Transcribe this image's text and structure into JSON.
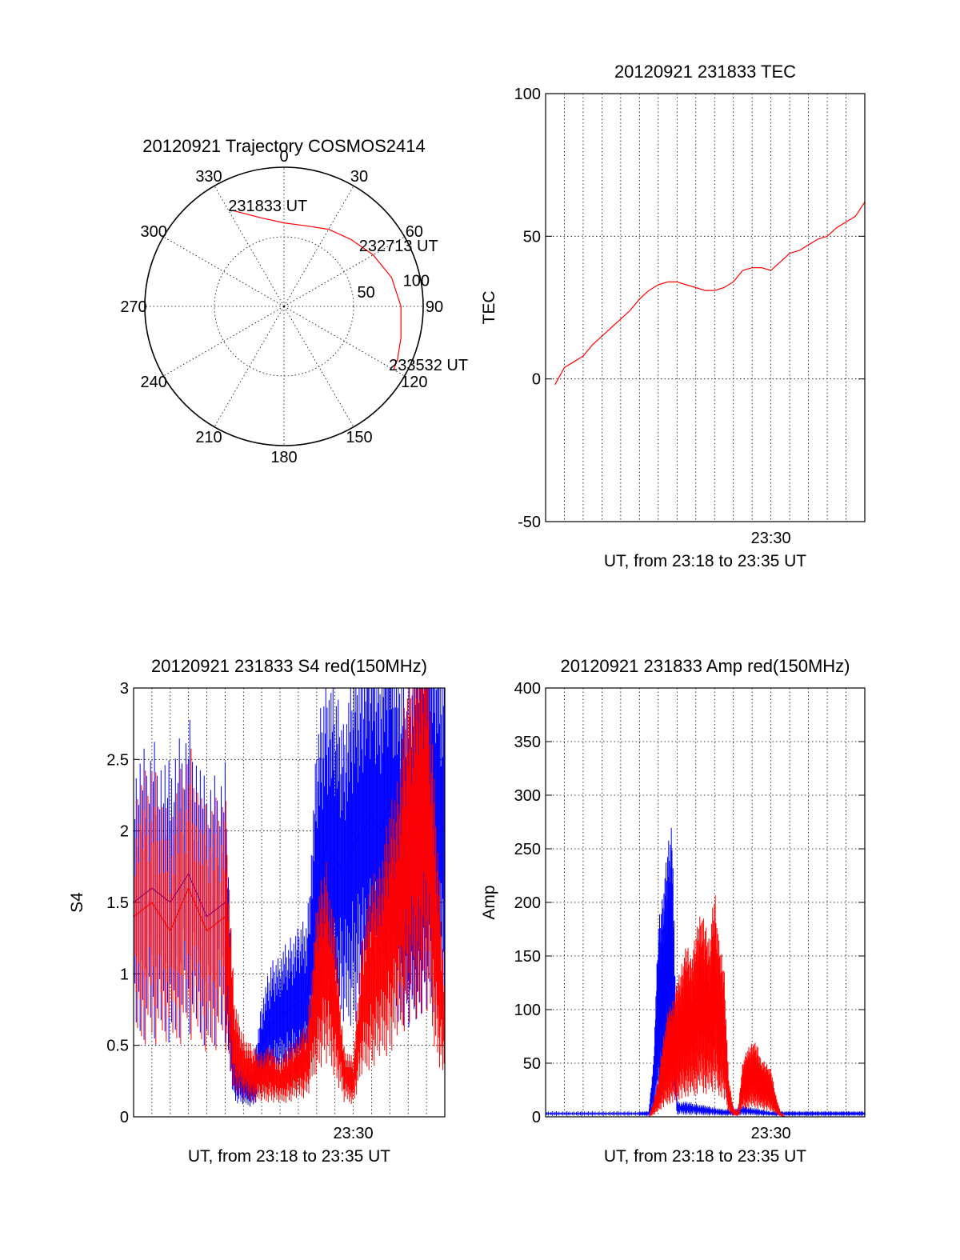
{
  "chart_data": [
    {
      "type": "polar",
      "title": "20120921 Trajectory COSMOS2414",
      "angle_labels": [
        "0",
        "30",
        "60",
        "90",
        "120",
        "150",
        "180",
        "210",
        "240",
        "270",
        "300",
        "330"
      ],
      "radius_labels": [
        "100",
        "50"
      ],
      "angle_values": [
        0,
        30,
        60,
        90,
        120,
        150,
        180,
        210,
        240,
        270,
        300,
        330
      ],
      "radius_values": [
        100,
        50
      ],
      "rmax": 100,
      "series": [
        {
          "color": "#ff0000",
          "points": [
            {
              "az": 332,
              "r": 78
            },
            {
              "az": 345,
              "r": 66
            },
            {
              "az": 0,
              "r": 60
            },
            {
              "az": 15,
              "r": 60
            },
            {
              "az": 30,
              "r": 64
            },
            {
              "az": 45,
              "r": 68
            },
            {
              "az": 60,
              "r": 74
            },
            {
              "az": 75,
              "r": 80
            },
            {
              "az": 90,
              "r": 84
            },
            {
              "az": 105,
              "r": 87
            },
            {
              "az": 115,
              "r": 90
            },
            {
              "az": 120,
              "r": 91
            }
          ]
        }
      ],
      "annotations": [
        {
          "text": "231833 UT",
          "az": 332,
          "r": 78
        },
        {
          "text": "232713 UT",
          "az": 55,
          "r": 70
        },
        {
          "text": "233532 UT",
          "az": 120,
          "r": 91
        }
      ]
    },
    {
      "type": "line",
      "title": "20120921 231833 TEC",
      "ylabel": "TEC",
      "xlabel": "UT, from 23:18 to 23:35 UT",
      "xlim": [
        0,
        1020
      ],
      "ylim": [
        -50,
        100
      ],
      "yticks": [
        -50,
        0,
        50,
        100
      ],
      "xtick_labels": [
        {
          "value": 720,
          "label": "23:30"
        }
      ],
      "grid_x_step": 60,
      "grid_y": [
        0,
        50
      ],
      "series": [
        {
          "color": "#ff0000",
          "x": [
            30,
            60,
            90,
            120,
            150,
            180,
            210,
            240,
            270,
            300,
            330,
            360,
            390,
            420,
            450,
            480,
            510,
            540,
            570,
            600,
            630,
            660,
            690,
            720,
            750,
            780,
            810,
            840,
            870,
            900,
            930,
            960,
            990,
            1020
          ],
          "y": [
            -2,
            4,
            6,
            8,
            12,
            15,
            18,
            21,
            24,
            28,
            31,
            33,
            34,
            34,
            33,
            32,
            31,
            31,
            32,
            34,
            38,
            39,
            39,
            38,
            41,
            44,
            45,
            47,
            49,
            50,
            53,
            55,
            57,
            62
          ]
        }
      ]
    },
    {
      "type": "line",
      "title": "20120921 231833 S4 red(150MHz)",
      "ylabel": "S4",
      "xlabel": "UT, from 23:18 to 23:35 UT",
      "xlim": [
        0,
        1020
      ],
      "ylim": [
        0,
        3
      ],
      "yticks": [
        0,
        0.5,
        1,
        1.5,
        2,
        2.5,
        3
      ],
      "xtick_labels": [
        {
          "value": 720,
          "label": "23:30"
        }
      ],
      "grid_x_step": 60,
      "grid_y": [
        0.5,
        1,
        1.5,
        2,
        2.5
      ],
      "series": [
        {
          "color": "#0000ff",
          "x": [
            0,
            60,
            120,
            180,
            240,
            300,
            330,
            360,
            390,
            420,
            450,
            480,
            510,
            540,
            570,
            600,
            630,
            660,
            690,
            720,
            750,
            780,
            810,
            840,
            870,
            900,
            930,
            960,
            990,
            1020
          ],
          "y": [
            1.5,
            1.6,
            1.5,
            1.7,
            1.4,
            1.5,
            0.3,
            0.22,
            0.2,
            0.5,
            0.65,
            0.7,
            0.75,
            0.8,
            0.85,
            1.6,
            1.9,
            1.8,
            1.7,
            1.9,
            2.0,
            2.1,
            2.0,
            2.2,
            1.9,
            1.8,
            2.0,
            2.2,
            2.1,
            2.0
          ]
        },
        {
          "color": "#ff0000",
          "x": [
            0,
            60,
            120,
            180,
            240,
            300,
            330,
            360,
            390,
            420,
            450,
            480,
            510,
            540,
            570,
            600,
            630,
            660,
            690,
            720,
            750,
            780,
            810,
            840,
            870,
            900,
            930,
            960,
            990,
            1020
          ],
          "y": [
            1.4,
            1.5,
            1.3,
            1.6,
            1.3,
            1.4,
            0.5,
            0.35,
            0.3,
            0.28,
            0.3,
            0.25,
            0.3,
            0.35,
            0.4,
            0.9,
            1.1,
            0.8,
            0.3,
            0.25,
            0.8,
            1.0,
            1.1,
            1.3,
            1.5,
            1.9,
            2.0,
            2.2,
            1.3,
            0.6
          ]
        }
      ]
    },
    {
      "type": "line",
      "title": "20120921 231833 Amp red(150MHz)",
      "ylabel": "Amp",
      "xlabel": "UT, from 23:18 to 23:35 UT",
      "xlim": [
        0,
        1020
      ],
      "ylim": [
        0,
        400
      ],
      "yticks": [
        0,
        50,
        100,
        150,
        200,
        250,
        300,
        350,
        400
      ],
      "xtick_labels": [
        {
          "value": 720,
          "label": "23:30"
        }
      ],
      "grid_x_step": 60,
      "grid_y": [
        50,
        100,
        150,
        200,
        250,
        300,
        350
      ],
      "series": [
        {
          "color": "#0000ff",
          "x": [
            0,
            60,
            120,
            180,
            240,
            300,
            330,
            345,
            360,
            375,
            390,
            405,
            420,
            450,
            480,
            510,
            540,
            570,
            600,
            630,
            660,
            690,
            720,
            750,
            780,
            810,
            840,
            870,
            900,
            930,
            960,
            990,
            1020
          ],
          "y": [
            3,
            3,
            3,
            3,
            3,
            3,
            3,
            30,
            100,
            120,
            140,
            160,
            8,
            8,
            7,
            6,
            5,
            4,
            4,
            6,
            5,
            4,
            3,
            3,
            3,
            3,
            3,
            3,
            3,
            3,
            3,
            3,
            3
          ]
        },
        {
          "color": "#ff0000",
          "x": [
            330,
            345,
            360,
            375,
            390,
            405,
            420,
            435,
            450,
            465,
            480,
            495,
            510,
            525,
            540,
            555,
            570,
            585,
            600,
            615,
            630,
            645,
            660,
            675,
            690,
            705,
            720,
            735,
            750,
            765
          ],
          "y": [
            0,
            8,
            20,
            40,
            55,
            60,
            70,
            80,
            90,
            85,
            95,
            110,
            100,
            95,
            120,
            90,
            80,
            20,
            5,
            3,
            30,
            35,
            40,
            38,
            30,
            28,
            25,
            12,
            3,
            0
          ]
        }
      ]
    }
  ]
}
